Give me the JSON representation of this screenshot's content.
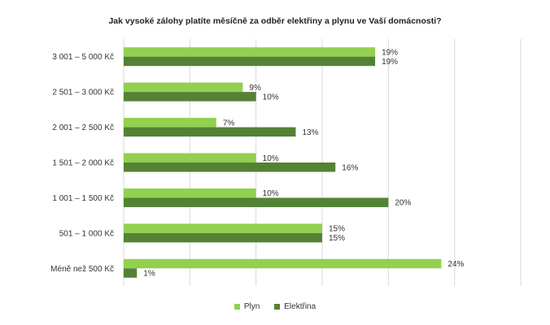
{
  "chart_data": {
    "type": "bar",
    "orientation": "horizontal",
    "title": "Jak vysoké zálohy platíte měsíčně za odběr elektřiny a plynu ve Vaší domácnosti?",
    "categories": [
      "3 001 – 5 000 Kč",
      "2 501 – 3 000 Kč",
      "2 001 – 2 500 Kč",
      "1 501 – 2 000 Kč",
      "1 001 – 1 500 Kč",
      "501 – 1 000 Kč",
      "Méně než 500 Kč"
    ],
    "series": [
      {
        "name": "Plyn",
        "color": "#92d050",
        "values": [
          19,
          9,
          7,
          10,
          10,
          15,
          24
        ],
        "labels": [
          "19%",
          "9%",
          "7%",
          "10%",
          "10%",
          "15%",
          "24%"
        ]
      },
      {
        "name": "Elektřina",
        "color": "#548235",
        "values": [
          19,
          10,
          13,
          16,
          20,
          15,
          1
        ],
        "labels": [
          "19%",
          "10%",
          "13%",
          "16%",
          "20%",
          "15%",
          "1%"
        ]
      }
    ],
    "xlim": [
      0,
      30
    ],
    "grid": true,
    "legend_position": "bottom"
  }
}
